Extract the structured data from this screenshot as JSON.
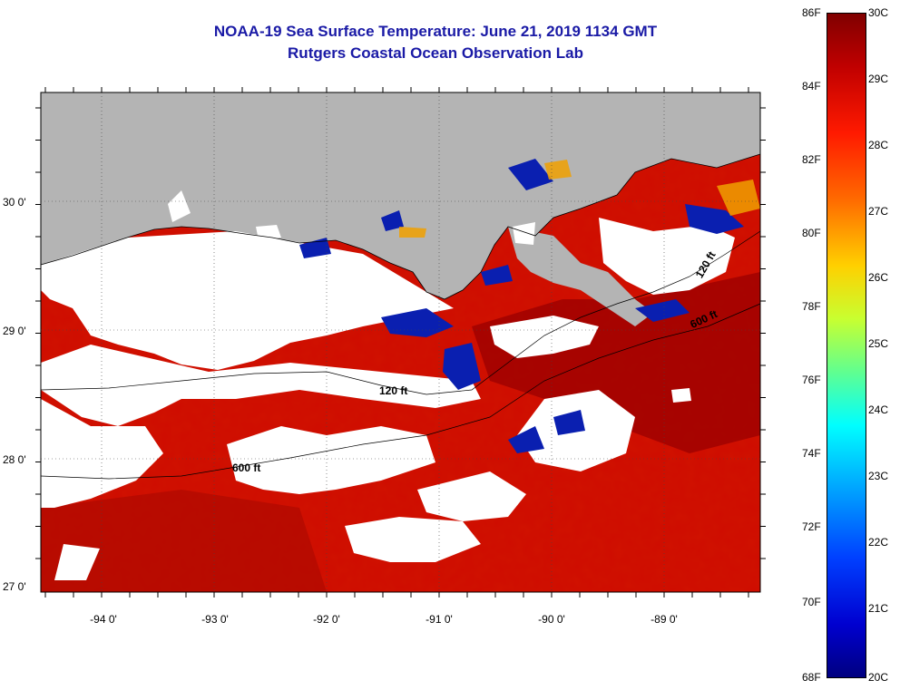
{
  "title_line1": "NOAA-19 Sea Surface Temperature:  June 21, 2019 1134 GMT",
  "title_line2": "Rutgers Coastal Ocean Observation Lab",
  "lat_labels": [
    "30 0'",
    "29 0'",
    "28 0'",
    "27 0'"
  ],
  "lon_labels": [
    "-94 0'",
    "-93 0'",
    "-92 0'",
    "-91 0'",
    "-90 0'",
    "-89 0'"
  ],
  "contours": [
    "120 ft",
    "600 ft",
    "600 ft",
    "120 ft"
  ],
  "colorbar": {
    "f_labels": [
      "86F",
      "84F",
      "82F",
      "80F",
      "78F",
      "76F",
      "74F",
      "72F",
      "70F",
      "68F"
    ],
    "c_labels": [
      "30C",
      "29C",
      "28C",
      "27C",
      "26C",
      "25C",
      "24C",
      "23C",
      "22C",
      "21C",
      "20C"
    ]
  },
  "colors": {
    "land": "#b4b4b4",
    "cloud": "#ffffff",
    "warm": "#d01200",
    "hot": "#9a0000",
    "cold": "#0a1fb0"
  }
}
